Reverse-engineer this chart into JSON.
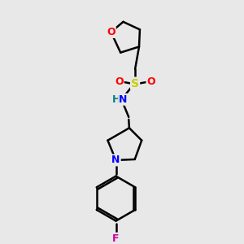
{
  "background_color": "#e8e8e8",
  "bond_color": "#000000",
  "atom_colors": {
    "O": "#ff0000",
    "N": "#0000ff",
    "S": "#cccc00",
    "F": "#cc00aa",
    "H": "#008080",
    "C": "#000000"
  },
  "figsize": [
    3.0,
    3.0
  ],
  "dpi": 100
}
